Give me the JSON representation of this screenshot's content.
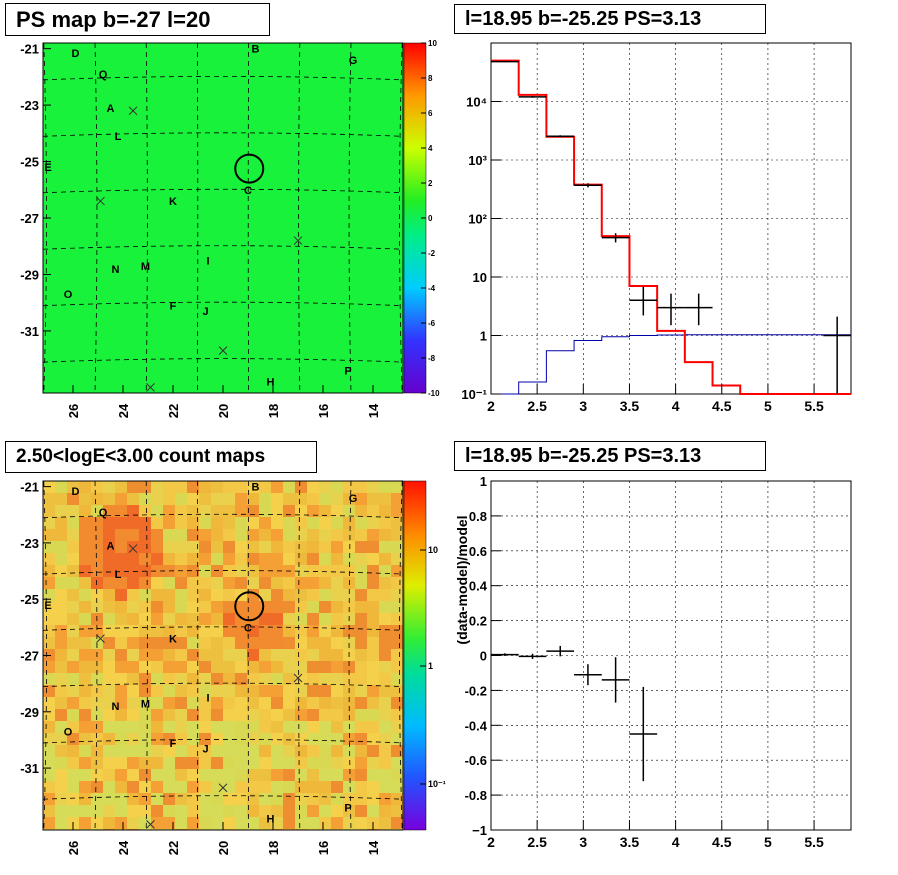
{
  "panels": {
    "ps_map_title": "PS map b=-27 l=20",
    "count_map_title": "2.50<logE<3.00 count maps",
    "spectrum_title": "l=18.95 b=-25.25 PS=3.13",
    "residual_title": "l=18.95 b=-25.25 PS=3.13"
  },
  "source_labels": [
    "A",
    "B",
    "C",
    "D",
    "E",
    "F",
    "G",
    "H",
    "I",
    "J",
    "K",
    "L",
    "M",
    "N",
    "O",
    "P",
    "Q"
  ],
  "colors": {
    "data": "#000000",
    "model": "#ff0000",
    "background_model": "#0000aa"
  },
  "chart_data": [
    {
      "type": "heatmap",
      "title": "PS map b=-27 l=20",
      "x_ticks": [
        "26",
        "24",
        "22",
        "20",
        "18",
        "16",
        "14"
      ],
      "y_ticks": [
        "-21",
        "-23",
        "-25",
        "-27",
        "-29",
        "-31"
      ],
      "xlim": [
        27.2,
        12.8
      ],
      "ylim": [
        -33.2,
        -20.8
      ],
      "colorbar_ticks": [
        "10",
        "8",
        "6",
        "4",
        "2",
        "0",
        "-2",
        "-4",
        "-6",
        "-8",
        "-10"
      ],
      "zlim": [
        -10,
        10
      ],
      "circle": {
        "l": 18.95,
        "b": -25.25
      },
      "sources": [
        {
          "name": "D",
          "l": 25.9,
          "b": -21.15
        },
        {
          "name": "B",
          "l": 18.7,
          "b": -21.0
        },
        {
          "name": "G",
          "l": 14.8,
          "b": -21.4
        },
        {
          "name": "Q",
          "l": 24.8,
          "b": -21.9
        },
        {
          "name": "A",
          "l": 24.5,
          "b": -23.1
        },
        {
          "name": "L",
          "l": 24.2,
          "b": -24.1
        },
        {
          "name": "E",
          "l": 27.0,
          "b": -25.2
        },
        {
          "name": "C",
          "l": 19.0,
          "b": -26.0
        },
        {
          "name": "K",
          "l": 22.0,
          "b": -26.4
        },
        {
          "name": "I",
          "l": 20.6,
          "b": -28.5
        },
        {
          "name": "M",
          "l": 23.1,
          "b": -28.7
        },
        {
          "name": "N",
          "l": 24.3,
          "b": -28.8
        },
        {
          "name": "O",
          "l": 26.2,
          "b": -29.7
        },
        {
          "name": "F",
          "l": 22.0,
          "b": -30.1
        },
        {
          "name": "J",
          "l": 20.7,
          "b": -30.3
        },
        {
          "name": "P",
          "l": 15.0,
          "b": -32.4
        },
        {
          "name": "H",
          "l": 18.1,
          "b": -32.8
        }
      ],
      "crosses": [
        {
          "l": 23.6,
          "b": -23.2
        },
        {
          "l": 24.9,
          "b": -26.4
        },
        {
          "l": 17.0,
          "b": -27.8
        },
        {
          "l": 20.0,
          "b": -31.7
        },
        {
          "l": 22.9,
          "b": -33.0
        }
      ]
    },
    {
      "type": "heatmap",
      "title": "2.50<logE<3.00 count maps",
      "x_ticks": [
        "26",
        "24",
        "22",
        "20",
        "18",
        "16",
        "14"
      ],
      "y_ticks": [
        "-21",
        "-23",
        "-25",
        "-27",
        "-29",
        "-31"
      ],
      "xlim": [
        27.2,
        12.8
      ],
      "ylim": [
        -33.2,
        -20.8
      ],
      "colorbar_ticks": [
        "10",
        "1",
        "10⁻¹"
      ],
      "zscale": "log",
      "zlim": [
        0.05,
        50
      ]
    },
    {
      "type": "line",
      "title": "l=18.95 b=-25.25 PS=3.13",
      "yscale": "log",
      "xlim": [
        2.0,
        5.9
      ],
      "ylim": [
        0.1,
        100000
      ],
      "x_ticks": [
        "2",
        "2.5",
        "3",
        "3.5",
        "4",
        "4.5",
        "5",
        "5.5"
      ],
      "y_ticks": [
        "10⁻¹",
        "1",
        "10",
        "10²",
        "10³",
        "10⁴"
      ],
      "grid": true,
      "series": [
        {
          "style": "step-red",
          "edges": [
            2.0,
            2.3,
            2.6,
            2.9,
            3.2,
            3.5,
            3.8,
            4.1,
            4.4,
            4.7,
            5.0,
            5.3,
            5.6,
            5.9
          ],
          "values": [
            50000,
            13000,
            2500,
            380,
            50,
            7,
            1.2,
            0.35,
            0.14,
            0.1,
            0.1,
            0.1,
            0.1
          ]
        },
        {
          "style": "step-blue",
          "edges": [
            2.0,
            2.3,
            2.6,
            2.9,
            3.2,
            3.5,
            3.8,
            4.1,
            4.4,
            4.7,
            5.0,
            5.3,
            5.6,
            5.9
          ],
          "values": [
            0.1,
            0.16,
            0.55,
            0.82,
            0.95,
            1.0,
            1.02,
            1.03,
            1.03,
            1.03,
            1.03,
            1.03,
            1.03
          ]
        },
        {
          "style": "errorbars",
          "points": [
            {
              "x": 2.15,
              "y": 48000,
              "xerr": 0.15,
              "yerr": [
                47000,
                49000
              ]
            },
            {
              "x": 2.45,
              "y": 12000,
              "xerr": 0.15,
              "yerr": [
                11600,
                12400
              ]
            },
            {
              "x": 2.75,
              "y": 2550,
              "xerr": 0.15,
              "yerr": [
                2450,
                2650
              ]
            },
            {
              "x": 3.05,
              "y": 370,
              "xerr": 0.15,
              "yerr": [
                340,
                400
              ]
            },
            {
              "x": 3.35,
              "y": 47,
              "xerr": 0.15,
              "yerr": [
                39,
                56
              ]
            },
            {
              "x": 3.65,
              "y": 4,
              "xerr": 0.15,
              "yerr": [
                2.2,
                6.8
              ]
            },
            {
              "x": 3.95,
              "y": 3,
              "xerr": 0.15,
              "yerr": [
                1.5,
                5.2
              ]
            },
            {
              "x": 4.25,
              "y": 3,
              "xerr": 0.15,
              "yerr": [
                1.5,
                5.2
              ]
            },
            {
              "x": 5.75,
              "y": 1,
              "xerr": 0.15,
              "yerr": [
                0.1,
                2.1
              ]
            }
          ]
        }
      ]
    },
    {
      "type": "scatter",
      "title": "l=18.95 b=-25.25 PS=3.13",
      "ylabel": "(data-model)/model",
      "xlim": [
        2.0,
        5.9
      ],
      "ylim": [
        -1,
        1
      ],
      "x_ticks": [
        2,
        2.5,
        3,
        3.5,
        4,
        4.5,
        5,
        5.5
      ],
      "y_ticks": [
        -1,
        -0.8,
        -0.6,
        -0.4,
        -0.2,
        0,
        0.2,
        0.4,
        0.6,
        0.8,
        1
      ],
      "grid": true,
      "points": [
        {
          "x": 2.15,
          "y": 0.005,
          "xerr": 0.15,
          "yerr": 0.008
        },
        {
          "x": 2.45,
          "y": -0.005,
          "xerr": 0.15,
          "yerr": 0.015
        },
        {
          "x": 2.75,
          "y": 0.025,
          "xerr": 0.15,
          "yerr": 0.03
        },
        {
          "x": 3.05,
          "y": -0.11,
          "xerr": 0.15,
          "yerr": 0.06
        },
        {
          "x": 3.35,
          "y": -0.14,
          "xerr": 0.15,
          "yerr": 0.13
        },
        {
          "x": 3.65,
          "y": -0.45,
          "xerr": 0.15,
          "yerr": 0.27
        }
      ]
    }
  ]
}
